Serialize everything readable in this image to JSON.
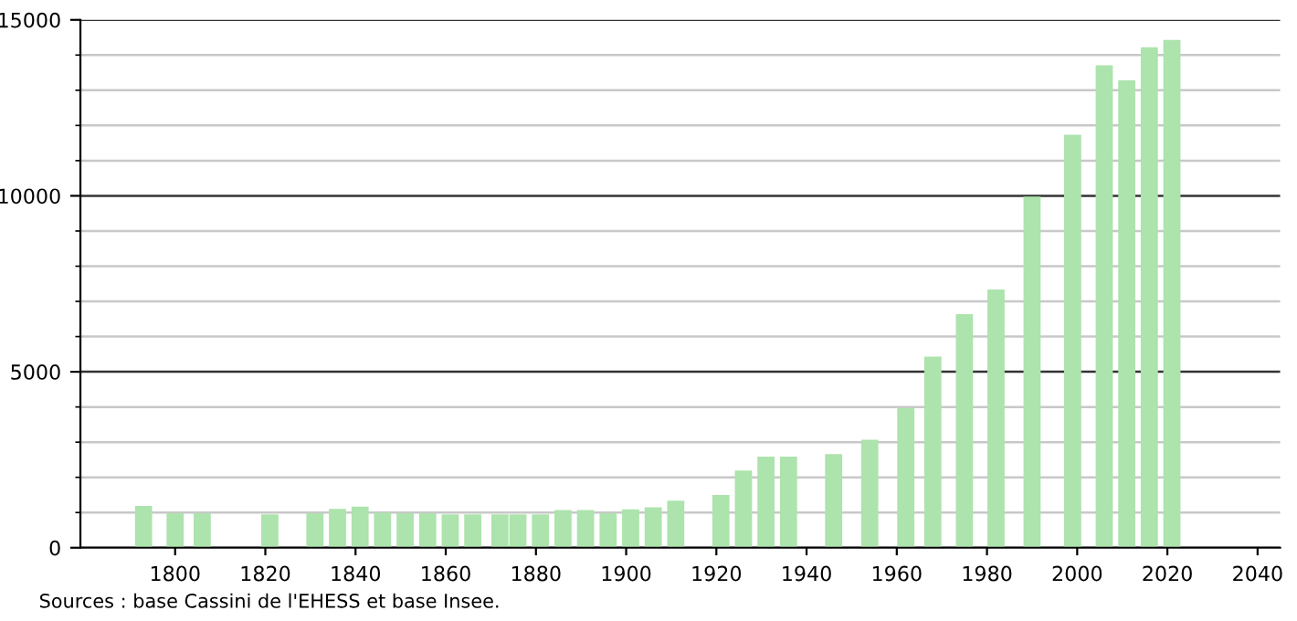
{
  "chart_data": {
    "type": "bar",
    "x": [
      1793,
      1800,
      1806,
      1821,
      1831,
      1836,
      1841,
      1846,
      1851,
      1856,
      1861,
      1866,
      1872,
      1876,
      1881,
      1886,
      1891,
      1896,
      1901,
      1906,
      1911,
      1921,
      1926,
      1931,
      1936,
      1946,
      1954,
      1962,
      1968,
      1975,
      1982,
      1990,
      1999,
      2006,
      2011,
      2016,
      2021
    ],
    "values": [
      1190,
      980,
      980,
      950,
      980,
      1100,
      1170,
      1000,
      980,
      980,
      950,
      950,
      950,
      950,
      950,
      1070,
      1070,
      980,
      1090,
      1150,
      1340,
      1500,
      2190,
      2590,
      2590,
      2660,
      3070,
      3970,
      5430,
      6640,
      7340,
      9980,
      11740,
      13710,
      13280,
      14220,
      14430
    ],
    "color": "#ade3ad",
    "xlim": [
      1779,
      2045
    ],
    "xticks": [
      1800,
      1820,
      1840,
      1860,
      1880,
      1900,
      1920,
      1940,
      1960,
      1980,
      2000,
      2020,
      2040
    ],
    "ylim": [
      0,
      15000
    ],
    "yticks": [
      0,
      {
        "value": 1000,
        "label": null
      },
      {
        "value": 2000,
        "label": null
      },
      {
        "value": 3000,
        "label": null
      },
      {
        "value": 4000,
        "label": null
      },
      5000,
      {
        "value": 6000,
        "label": null
      },
      {
        "value": 7000,
        "label": null
      },
      {
        "value": 8000,
        "label": null
      },
      {
        "value": 9000,
        "label": null
      },
      10000,
      {
        "value": 11000,
        "label": null
      },
      {
        "value": 12000,
        "label": null
      },
      {
        "value": 13000,
        "label": null
      },
      {
        "value": 14000,
        "label": null
      },
      15000
    ],
    "grid": "y",
    "annotations": [
      "Sources : base Cassini de l'EHESS et base Insee."
    ]
  }
}
